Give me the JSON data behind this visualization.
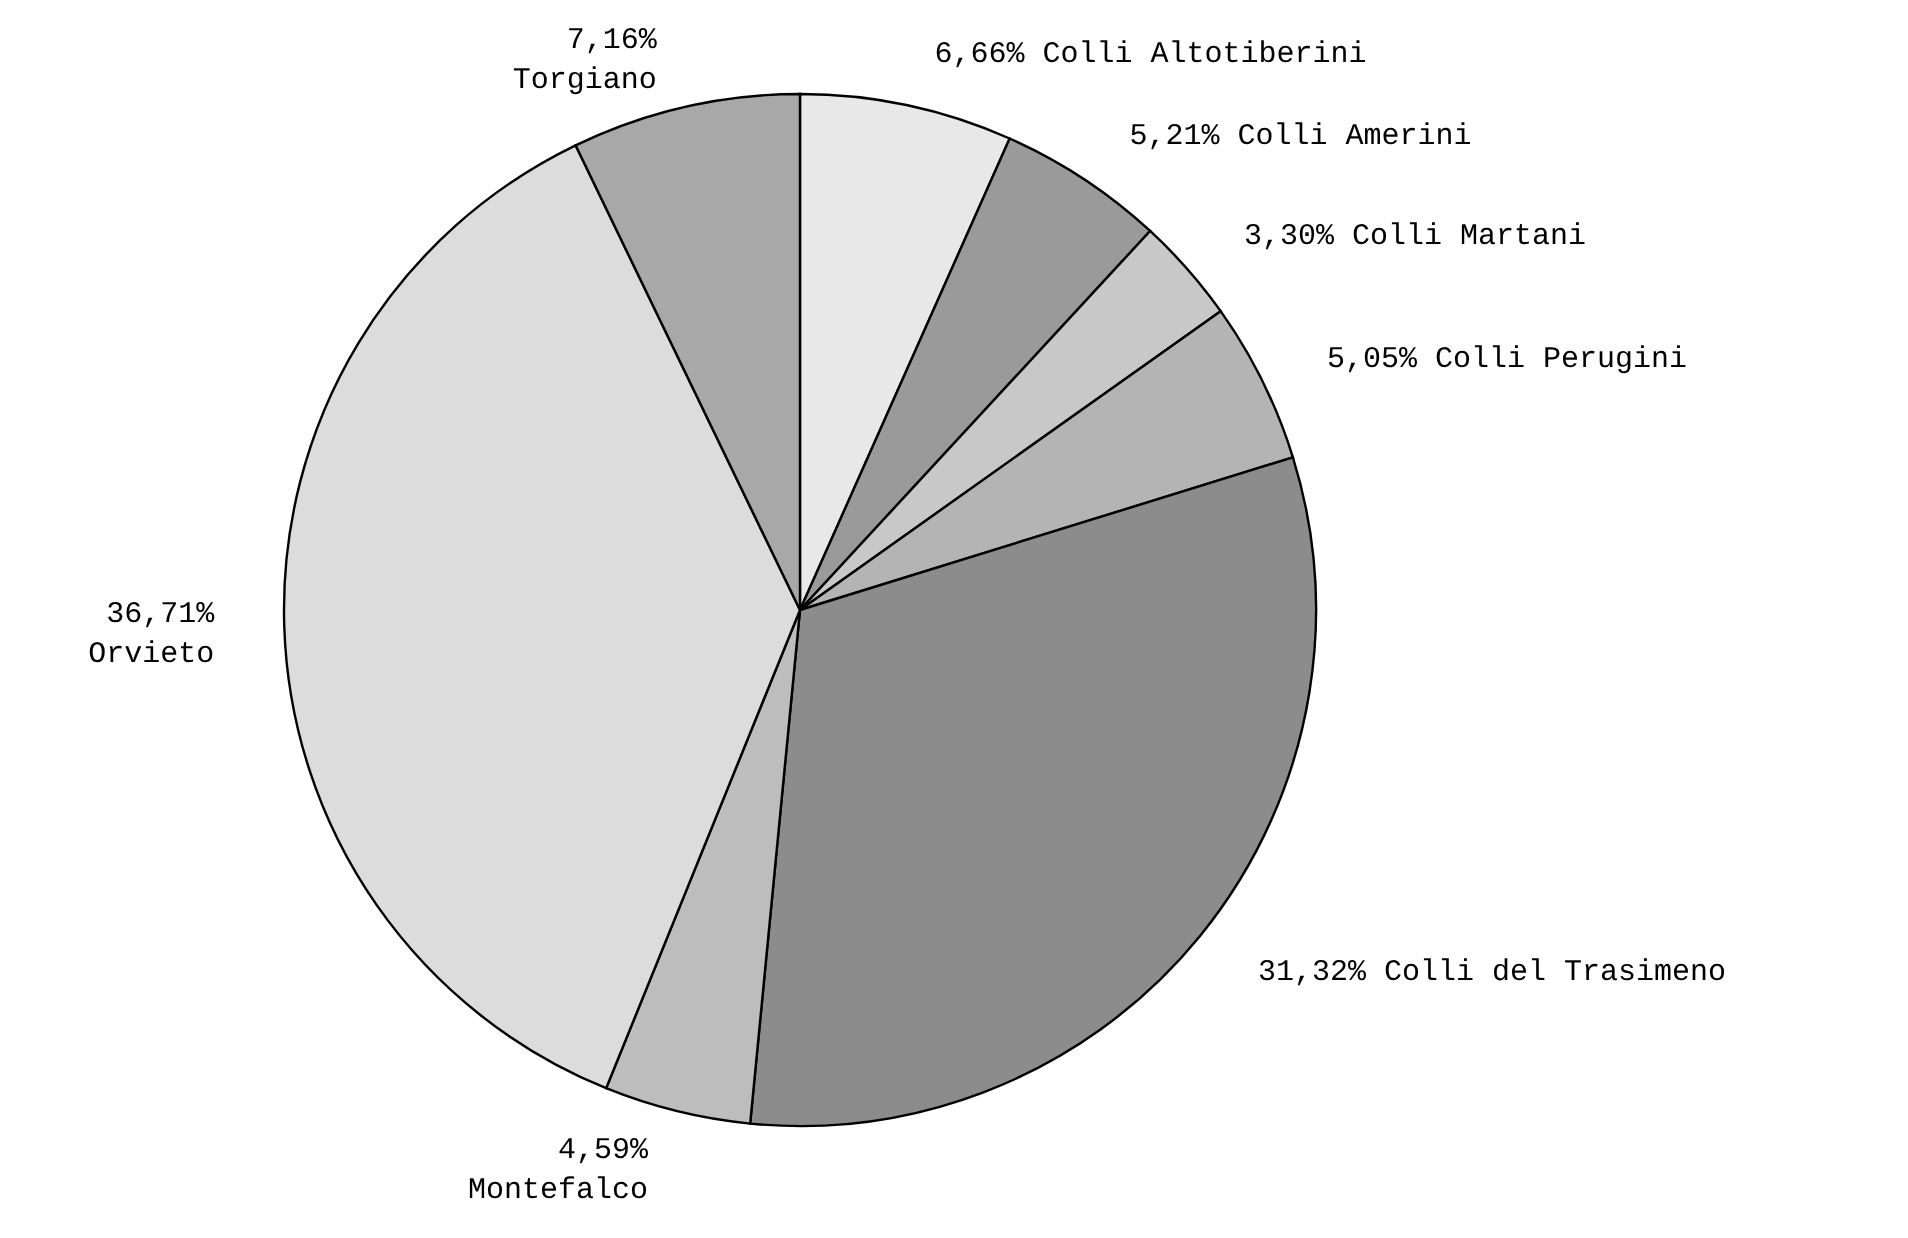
{
  "chart_data": {
    "type": "pie",
    "categories": [
      "Colli Altotiberini",
      "Colli Amerini",
      "Colli Martani",
      "Colli Perugini",
      "Colli del Trasimeno",
      "Montefalco",
      "Orvieto",
      "Torgiano"
    ],
    "values": [
      6.66,
      5.21,
      3.3,
      5.05,
      31.32,
      4.59,
      36.71,
      7.16
    ],
    "value_labels": [
      "6,66%",
      "5,21%",
      "3,30%",
      "5,05%",
      "31,32%",
      "4,59%",
      "36,71%",
      "7,16%"
    ],
    "colors": [
      "#e8e8e8",
      "#9a9a9a",
      "#c8c8c8",
      "#b4b4b4",
      "#8c8c8c",
      "#bdbdbd",
      "#dcdcdc",
      "#a8a8a8"
    ]
  }
}
